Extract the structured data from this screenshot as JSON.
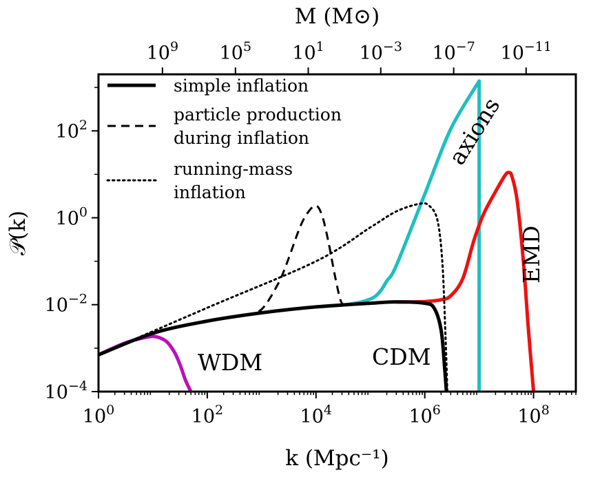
{
  "chart_data": {
    "type": "line",
    "title": "",
    "xlabel": "k (Mpc⁻¹)",
    "ylabel": "𝒫(k)",
    "top_xlabel": "M (M⊙)",
    "xscale": "log",
    "yscale": "log",
    "xlim": [
      1,
      600000000
    ],
    "ylim": [
      0.0001,
      2000
    ],
    "grid": false,
    "legend_position": "top-left",
    "x_ticks": [
      {
        "value": 1,
        "base": "10",
        "exp": "0"
      },
      {
        "value": 100,
        "base": "10",
        "exp": "2"
      },
      {
        "value": 10000,
        "base": "10",
        "exp": "4"
      },
      {
        "value": 1000000,
        "base": "10",
        "exp": "6"
      },
      {
        "value": 100000000,
        "base": "10",
        "exp": "8"
      }
    ],
    "y_ticks": [
      {
        "value": 0.0001,
        "base": "10",
        "exp": "−4"
      },
      {
        "value": 0.01,
        "base": "10",
        "exp": "−2"
      },
      {
        "value": 1,
        "base": "10",
        "exp": "0"
      },
      {
        "value": 100,
        "base": "10",
        "exp": "2"
      }
    ],
    "top_ticks": [
      {
        "k": 15,
        "base": "10",
        "exp": "9"
      },
      {
        "k": 330,
        "base": "10",
        "exp": "5"
      },
      {
        "k": 7200,
        "base": "10",
        "exp": "1"
      },
      {
        "k": 155000,
        "base": "10",
        "exp": "−3"
      },
      {
        "k": 3400000,
        "base": "10",
        "exp": "−7"
      },
      {
        "k": 73000000,
        "base": "10",
        "exp": "−11"
      }
    ],
    "legend": [
      {
        "label_lines": [
          "simple inflation"
        ],
        "style": "solid"
      },
      {
        "label_lines": [
          "particle production",
          "during inflation"
        ],
        "style": "dashed"
      },
      {
        "label_lines": [
          "running-mass",
          "inflation"
        ],
        "style": "dotted"
      }
    ],
    "annotations": [
      {
        "text": "axions",
        "color": "#1fbfbf"
      },
      {
        "text": "EMD",
        "color": "#ee1111"
      },
      {
        "text": "WDM",
        "color": "#bb11bb"
      },
      {
        "text": "CDM",
        "color": "#000000"
      }
    ],
    "series": [
      {
        "name": "simple inflation",
        "color": "#000000",
        "style": "solid",
        "x": [
          1,
          10,
          100,
          1000,
          10000,
          100000,
          300000,
          1000000,
          1500000,
          2000000,
          2300000,
          2500000
        ],
        "y": [
          0.0007,
          0.0022,
          0.0042,
          0.0065,
          0.0089,
          0.0108,
          0.0116,
          0.0108,
          0.0082,
          0.0026,
          0.0004,
          0.0001
        ]
      },
      {
        "name": "particle production during inflation",
        "color": "#000000",
        "style": "dashed",
        "x": [
          500,
          1000,
          2000,
          3000,
          5000,
          7000,
          10000,
          13000,
          17000,
          22000,
          28000,
          33000
        ],
        "y": [
          0.0058,
          0.0078,
          0.03,
          0.1,
          0.58,
          1.3,
          1.9,
          1.1,
          0.27,
          0.05,
          0.013,
          0.0098
        ]
      },
      {
        "name": "running-mass inflation",
        "color": "#000000",
        "style": "dotted",
        "x": [
          1,
          100,
          10000,
          100000,
          300000,
          800000,
          1200000,
          1700000,
          2100000,
          2400000,
          2600000
        ],
        "y": [
          0.0007,
          0.0085,
          0.1,
          0.6,
          1.4,
          2.1,
          1.9,
          0.9,
          0.1,
          0.002,
          0.0001
        ]
      },
      {
        "name": "axions",
        "color": "#1fbfbf",
        "style": "solid",
        "x": [
          10000,
          40000,
          100000,
          150000,
          200000,
          300000,
          1000000,
          3000000,
          10000000,
          10000000
        ],
        "y": [
          0.0089,
          0.0102,
          0.0135,
          0.02,
          0.035,
          0.08,
          3.5,
          110,
          1400,
          0.0001
        ]
      },
      {
        "name": "EMD",
        "color": "#ee1111",
        "style": "solid",
        "x": [
          300000,
          1000000,
          2000000,
          3000000,
          5000000,
          8000000,
          12000000,
          20000000,
          30000000,
          35000000,
          40000000,
          50000000,
          65000000,
          80000000,
          100000000
        ],
        "y": [
          0.0115,
          0.0118,
          0.013,
          0.016,
          0.04,
          0.3,
          1.2,
          4.0,
          9.5,
          11,
          9.0,
          2.5,
          0.1,
          0.003,
          0.0001
        ]
      },
      {
        "name": "WDM",
        "color": "#bb11bb",
        "style": "solid",
        "x": [
          1,
          3,
          8,
          12,
          18,
          25,
          32,
          40,
          50
        ],
        "y": [
          0.0007,
          0.0013,
          0.0018,
          0.0018,
          0.0014,
          0.0008,
          0.0004,
          0.00018,
          0.0001
        ]
      }
    ]
  }
}
